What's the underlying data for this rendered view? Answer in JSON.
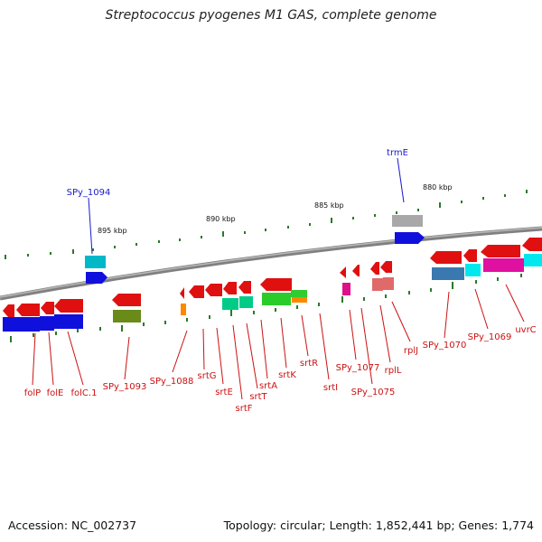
{
  "title": "Streptococcus pyogenes M1 GAS, complete genome",
  "accession": "Accession: NC_002737",
  "topology": "Topology: circular; Length: 1,852,441 bp; Genes: 1,774",
  "ruler": [
    "895 kbp",
    "890 kbp",
    "885 kbp",
    "880 kbp"
  ],
  "labels_above": [
    "SPy_1094",
    "trmE"
  ],
  "labels_below": [
    "folP",
    "folE",
    "folC.1",
    "SPy_1093",
    "SPy_1088",
    "srtG",
    "srtE",
    "srtF",
    "srtT",
    "srtA",
    "srtK",
    "srtR",
    "srtI",
    "SPy_1077",
    "SPy_1075",
    "rplL",
    "rplJ",
    "SPy_1070",
    "SPy_1069",
    "uvrC"
  ],
  "colors": {
    "label_forward": "#1a1acc",
    "label_reverse": "#cc1111",
    "backbone": "#888888",
    "tick": "#2a7a2a"
  }
}
